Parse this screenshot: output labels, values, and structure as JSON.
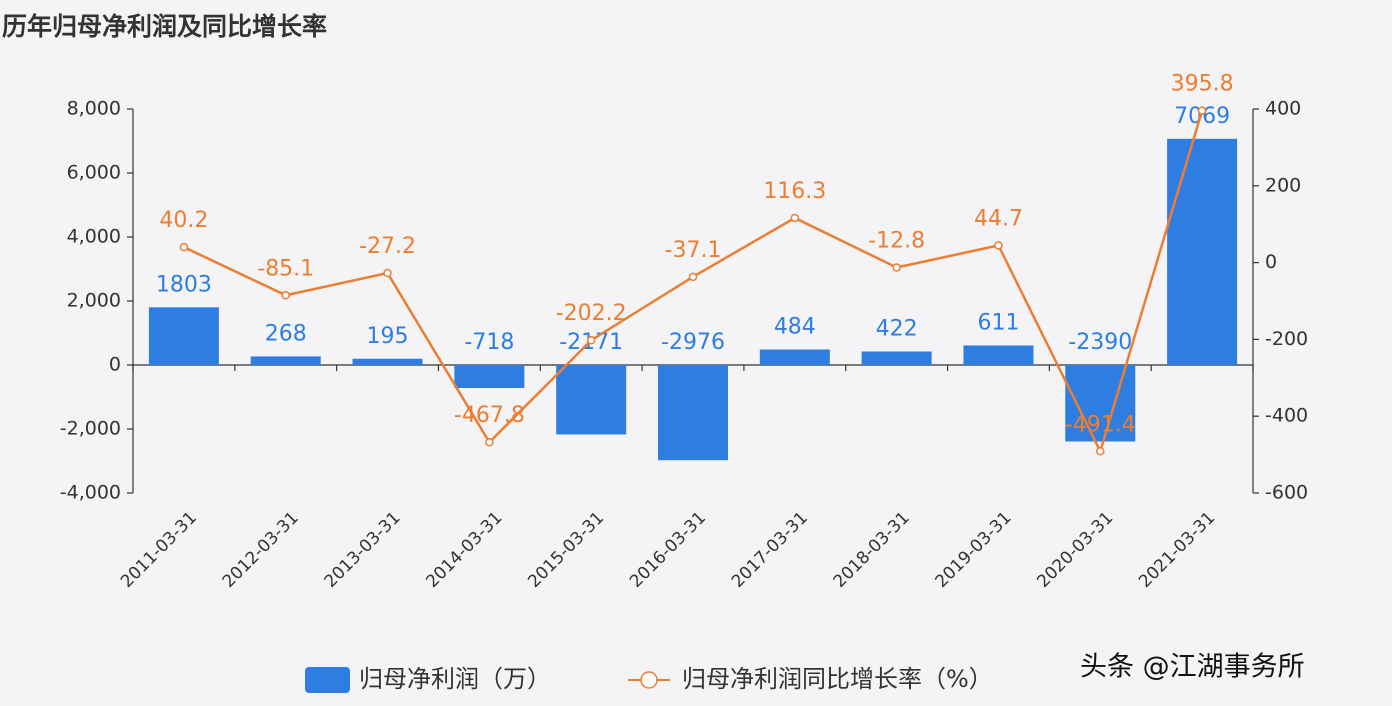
{
  "chart_data": {
    "type": "bar",
    "title": "历年归母净利润及同比增长率",
    "categories": [
      "2011-03-31",
      "2012-03-31",
      "2013-03-31",
      "2014-03-31",
      "2015-03-31",
      "2016-03-31",
      "2017-03-31",
      "2018-03-31",
      "2019-03-31",
      "2020-03-31",
      "2021-03-31"
    ],
    "series": [
      {
        "name": "归母净利润（万）",
        "type": "bar",
        "color": "#2e7de1",
        "values": [
          1803,
          268,
          195,
          -718,
          -2171,
          -2976,
          484,
          422,
          611,
          -2390,
          7069
        ]
      },
      {
        "name": "归母净利润同比增长率（%）",
        "type": "line",
        "axis": "y2",
        "color": "#ed7d31",
        "values": [
          40.2,
          -85.1,
          -27.2,
          -467.8,
          -202.2,
          -37.1,
          116.3,
          -12.8,
          44.7,
          -491.4,
          395.8
        ]
      }
    ],
    "ylim": [
      -4000,
      8000
    ],
    "yticks": [
      {
        "value": -4000,
        "label": "-4,000"
      },
      {
        "value": -2000,
        "label": "-2,000"
      },
      0,
      {
        "value": 2000,
        "label": "2,000"
      },
      {
        "value": 4000,
        "label": "4,000"
      },
      {
        "value": 6000,
        "label": "6,000"
      },
      {
        "value": 8000,
        "label": "8,000"
      }
    ],
    "y2lim": [
      -600,
      400
    ],
    "y2ticks": [
      -600,
      -400,
      -200,
      0,
      200,
      400
    ],
    "legend": "bottom",
    "watermark": "头条 @江湖事务所"
  }
}
